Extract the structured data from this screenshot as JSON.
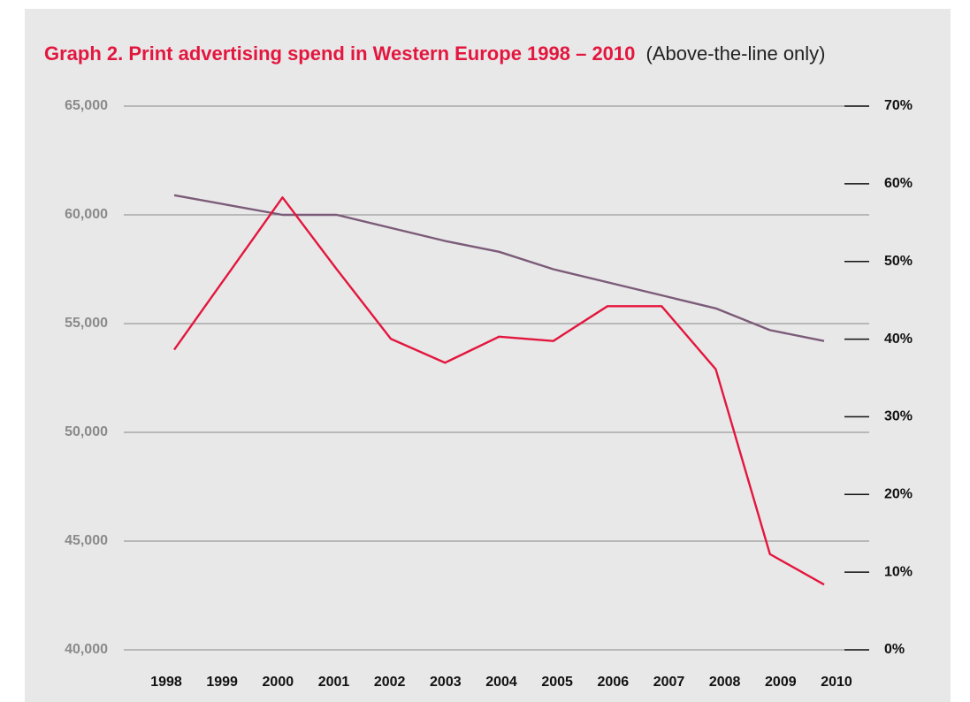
{
  "chart_data": {
    "type": "line",
    "title": "Graph 2. Print advertising spend in Western Europe 1998 – 2010",
    "subtitle": "(Above-the-line only)",
    "categories": [
      "1998",
      "1999",
      "2000",
      "2001",
      "2002",
      "2003",
      "2004",
      "2005",
      "2006",
      "2007",
      "2008",
      "2009",
      "2010"
    ],
    "series": [
      {
        "color": "#7b5b78",
        "values": [
          60900,
          60450,
          60000,
          60000,
          59400,
          58800,
          58300,
          57500,
          56900,
          56300,
          55700,
          54700,
          54200
        ]
      },
      {
        "color": "#e3173e",
        "values": [
          53800,
          57300,
          60800,
          57500,
          54300,
          53200,
          54400,
          54200,
          55800,
          55800,
          52900,
          44400,
          43000
        ]
      }
    ],
    "ylim": [
      40000,
      65000
    ],
    "yticks": [
      {
        "value": 40000,
        "label": "40,000"
      },
      {
        "value": 45000,
        "label": "45,000"
      },
      {
        "value": 50000,
        "label": "50,000"
      },
      {
        "value": 55000,
        "label": "55,000"
      },
      {
        "value": 60000,
        "label": "60,000"
      },
      {
        "value": 65000,
        "label": "65,000"
      }
    ],
    "y2lim": [
      0,
      70
    ],
    "y2ticks": [
      {
        "value": 0,
        "label": "0%"
      },
      {
        "value": 10,
        "label": "10%"
      },
      {
        "value": 20,
        "label": "20%"
      },
      {
        "value": 30,
        "label": "30%"
      },
      {
        "value": 40,
        "label": "40%"
      },
      {
        "value": 50,
        "label": "50%"
      },
      {
        "value": 60,
        "label": "60%"
      },
      {
        "value": 70,
        "label": "70%"
      }
    ],
    "grid": true
  }
}
